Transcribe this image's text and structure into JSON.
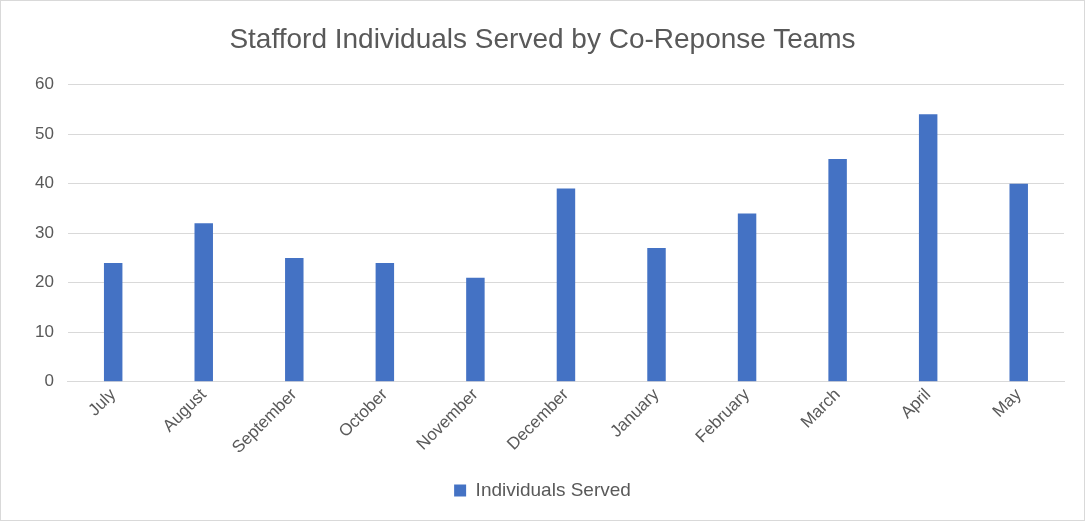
{
  "chart_data": {
    "type": "bar",
    "title": "Stafford Individuals Served by Co-Reponse Teams",
    "categories": [
      "July",
      "August",
      "September",
      "October",
      "November",
      "December",
      "January",
      "February",
      "March",
      "April",
      "May"
    ],
    "series": [
      {
        "name": "Individuals Served",
        "color": "#4472c4",
        "values": [
          24,
          32,
          25,
          24,
          21,
          39,
          27,
          34,
          45,
          54,
          40
        ]
      }
    ],
    "ylim": [
      0,
      60
    ],
    "yticks": [
      0,
      10,
      20,
      30,
      40,
      50,
      60
    ],
    "grid": "y",
    "legend": "bottom"
  }
}
